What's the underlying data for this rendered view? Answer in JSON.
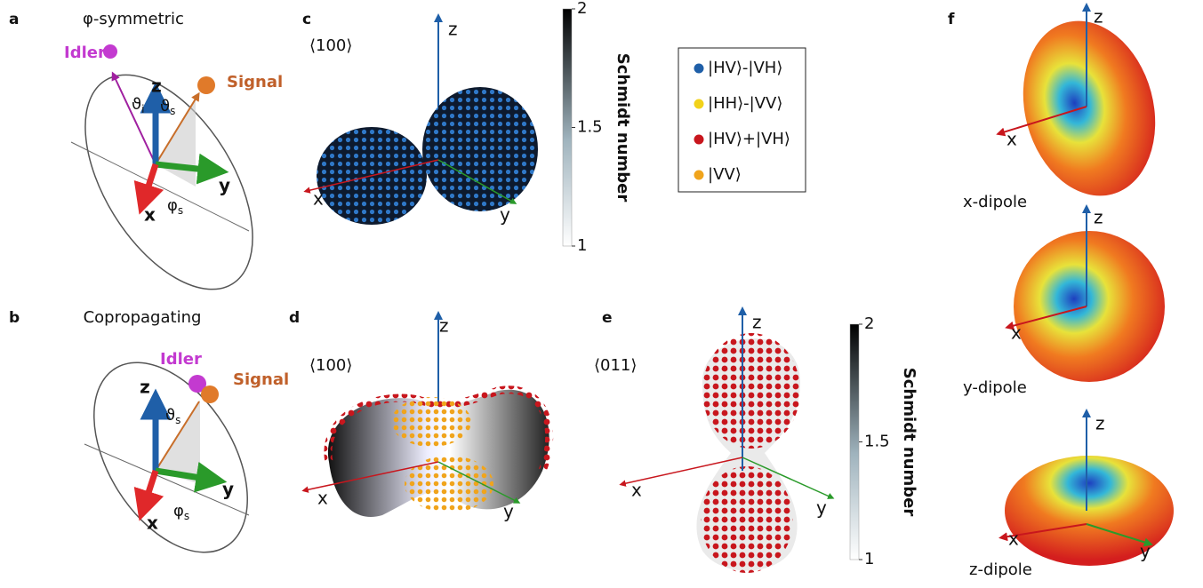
{
  "panels": {
    "a": {
      "label": "a",
      "title": "φ-symmetric",
      "idler": "Idler",
      "signal": "Signal",
      "axes": {
        "z": "z",
        "y": "y",
        "x": "x"
      },
      "angles": [
        {
          "symbol": "ϑ",
          "sub": "i"
        },
        {
          "symbol": "ϑ",
          "sub": "s"
        },
        {
          "symbol": "φ",
          "sub": "s"
        }
      ]
    },
    "b": {
      "label": "b",
      "title": "Copropagating",
      "idler": "Idler",
      "signal": "Signal",
      "axes": {
        "z": "z",
        "y": "y",
        "x": "x"
      },
      "angles": [
        {
          "symbol": "ϑ",
          "sub": "s"
        },
        {
          "symbol": "φ",
          "sub": "s"
        }
      ]
    },
    "c": {
      "label": "c",
      "orientation": "⟨100⟩",
      "axes": {
        "z": "z",
        "y": "y",
        "x": "x"
      }
    },
    "d": {
      "label": "d",
      "orientation": "⟨100⟩",
      "axes": {
        "z": "z",
        "y": "y",
        "x": "x"
      }
    },
    "e": {
      "label": "e",
      "orientation": "⟨011⟩",
      "axes": {
        "z": "z",
        "y": "y",
        "x": "x"
      }
    },
    "f": {
      "label": "f",
      "dipoles": [
        {
          "name": "x-dipole",
          "axes": {
            "z": "z",
            "x": "x"
          }
        },
        {
          "name": "y-dipole",
          "axes": {
            "z": "z",
            "x": "x"
          }
        },
        {
          "name": "z-dipole",
          "axes": {
            "z": "z",
            "x": "x",
            "y": "y"
          }
        }
      ]
    }
  },
  "colorbars": [
    {
      "label": "Schmidt number",
      "range": [
        1,
        2
      ],
      "ticks": [
        1,
        1.5,
        2
      ]
    },
    {
      "label": "Schmidt number",
      "range": [
        1,
        2
      ],
      "ticks": [
        1,
        1.5,
        2
      ]
    }
  ],
  "legend": [
    {
      "label": "|HV⟩-|VH⟩",
      "color": "#1f5fa8"
    },
    {
      "label": "|HH⟩-|VV⟩",
      "color": "#f2d21a"
    },
    {
      "label": "|HV⟩+|VH⟩",
      "color": "#c8161d"
    },
    {
      "label": "|VV⟩",
      "color": "#f0a41c"
    }
  ]
}
